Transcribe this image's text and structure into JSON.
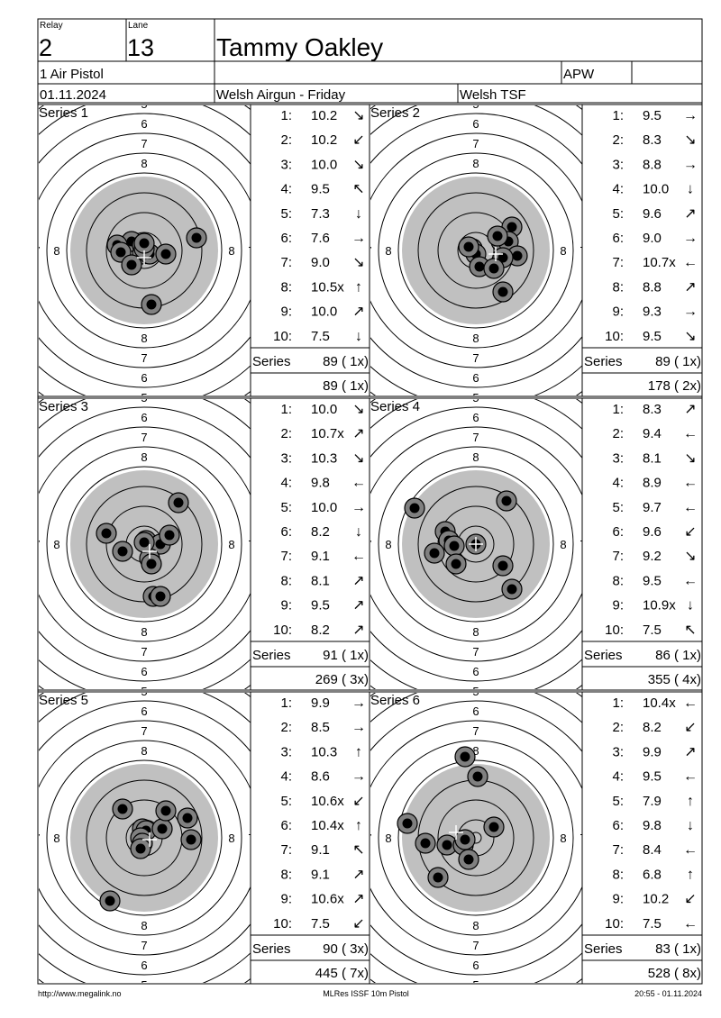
{
  "header": {
    "relay_label": "Relay",
    "relay_value": "2",
    "lane_label": "Lane",
    "lane_value": "13",
    "shooter_name": "Tammy Oakley",
    "discipline": "1 Air Pistol",
    "class_code": "APW",
    "date": "01.11.2024",
    "competition": "Welsh Airgun - Friday",
    "organizer": "Welsh TSF"
  },
  "series": [
    {
      "label": "Series 1",
      "shots": [
        {
          "num": "1:",
          "score": "10.2",
          "dir": "↘"
        },
        {
          "num": "2:",
          "score": "10.2",
          "dir": "↙"
        },
        {
          "num": "3:",
          "score": "10.0",
          "dir": "↘"
        },
        {
          "num": "4:",
          "score": "9.5",
          "dir": "↖"
        },
        {
          "num": "5:",
          "score": "7.3",
          "dir": "↓"
        },
        {
          "num": "6:",
          "score": "7.6",
          "dir": "→"
        },
        {
          "num": "7:",
          "score": "9.0",
          "dir": "↘"
        },
        {
          "num": "8:",
          "score": "10.5x",
          "dir": "↑"
        },
        {
          "num": "9:",
          "score": "10.0",
          "dir": "↗"
        },
        {
          "num": "10:",
          "score": "7.5",
          "dir": "↓"
        }
      ],
      "series_label": "Series",
      "series_total": "89 ( 1x)",
      "cumulative": "89 ( 1x)",
      "hits": [
        [
          -14,
          -10
        ],
        [
          -2,
          -6
        ],
        [
          -2,
          4
        ],
        [
          -30,
          -6
        ],
        [
          -26,
          2
        ],
        [
          -14,
          16
        ],
        [
          6,
          4
        ],
        [
          0,
          -2
        ],
        [
          8,
          60
        ],
        [
          58,
          -14
        ],
        [
          24,
          4
        ],
        [
          0,
          -8
        ]
      ],
      "center": [
        0,
        8
      ]
    },
    {
      "label": "Series 2",
      "shots": [
        {
          "num": "1:",
          "score": "9.5",
          "dir": "→"
        },
        {
          "num": "2:",
          "score": "8.3",
          "dir": "↘"
        },
        {
          "num": "3:",
          "score": "8.8",
          "dir": "→"
        },
        {
          "num": "4:",
          "score": "10.0",
          "dir": "↓"
        },
        {
          "num": "5:",
          "score": "9.6",
          "dir": "↗"
        },
        {
          "num": "6:",
          "score": "9.0",
          "dir": "→"
        },
        {
          "num": "7:",
          "score": "10.7x",
          "dir": "←"
        },
        {
          "num": "8:",
          "score": "8.8",
          "dir": "↗"
        },
        {
          "num": "9:",
          "score": "9.3",
          "dir": "→"
        },
        {
          "num": "10:",
          "score": "9.5",
          "dir": "↘"
        }
      ],
      "series_label": "Series",
      "series_total": "89 ( 1x)",
      "cumulative": "178 ( 2x)",
      "hits": [
        [
          -4,
          -2
        ],
        [
          0,
          4
        ],
        [
          28,
          -10
        ],
        [
          40,
          -26
        ],
        [
          36,
          -10
        ],
        [
          24,
          -16
        ],
        [
          46,
          6
        ],
        [
          30,
          8
        ],
        [
          4,
          18
        ],
        [
          20,
          20
        ],
        [
          30,
          46
        ],
        [
          -8,
          -4
        ]
      ],
      "center": [
        22,
        4
      ]
    },
    {
      "label": "Series 3",
      "shots": [
        {
          "num": "1:",
          "score": "10.0",
          "dir": "↘"
        },
        {
          "num": "2:",
          "score": "10.7x",
          "dir": "↗"
        },
        {
          "num": "3:",
          "score": "10.3",
          "dir": "↘"
        },
        {
          "num": "4:",
          "score": "9.8",
          "dir": "←"
        },
        {
          "num": "5:",
          "score": "10.0",
          "dir": "→"
        },
        {
          "num": "6:",
          "score": "8.2",
          "dir": "↓"
        },
        {
          "num": "7:",
          "score": "9.1",
          "dir": "←"
        },
        {
          "num": "8:",
          "score": "8.1",
          "dir": "↗"
        },
        {
          "num": "9:",
          "score": "9.5",
          "dir": "↗"
        },
        {
          "num": "10:",
          "score": "8.2",
          "dir": "↗"
        }
      ],
      "series_label": "Series",
      "series_total": "91 ( 1x)",
      "cumulative": "269 ( 3x)",
      "hits": [
        [
          2,
          -4
        ],
        [
          -24,
          8
        ],
        [
          -42,
          -12
        ],
        [
          18,
          0
        ],
        [
          6,
          16
        ],
        [
          8,
          22
        ],
        [
          10,
          58
        ],
        [
          18,
          58
        ],
        [
          38,
          -46
        ],
        [
          28,
          -10
        ],
        [
          0,
          -2
        ]
      ],
      "center": [
        6,
        8
      ]
    },
    {
      "label": "Series 4",
      "shots": [
        {
          "num": "1:",
          "score": "8.3",
          "dir": "↗"
        },
        {
          "num": "2:",
          "score": "9.4",
          "dir": "←"
        },
        {
          "num": "3:",
          "score": "8.1",
          "dir": "↘"
        },
        {
          "num": "4:",
          "score": "8.9",
          "dir": "←"
        },
        {
          "num": "5:",
          "score": "9.7",
          "dir": "←"
        },
        {
          "num": "6:",
          "score": "9.6",
          "dir": "↙"
        },
        {
          "num": "7:",
          "score": "9.2",
          "dir": "↘"
        },
        {
          "num": "8:",
          "score": "9.5",
          "dir": "←"
        },
        {
          "num": "9:",
          "score": "10.9x",
          "dir": "↓"
        },
        {
          "num": "10:",
          "score": "7.5",
          "dir": "↖"
        }
      ],
      "series_label": "Series",
      "series_total": "86 ( 1x)",
      "cumulative": "355 ( 4x)",
      "hits": [
        [
          -68,
          -40
        ],
        [
          -34,
          -14
        ],
        [
          -30,
          -4
        ],
        [
          -24,
          2
        ],
        [
          -46,
          10
        ],
        [
          -22,
          22
        ],
        [
          0,
          0
        ],
        [
          34,
          -48
        ],
        [
          30,
          24
        ],
        [
          40,
          50
        ]
      ],
      "center": [
        0,
        0
      ]
    },
    {
      "label": "Series 5",
      "shots": [
        {
          "num": "1:",
          "score": "9.9",
          "dir": "→"
        },
        {
          "num": "2:",
          "score": "8.5",
          "dir": "→"
        },
        {
          "num": "3:",
          "score": "10.3",
          "dir": "↑"
        },
        {
          "num": "4:",
          "score": "8.6",
          "dir": "→"
        },
        {
          "num": "5:",
          "score": "10.6x",
          "dir": "↙"
        },
        {
          "num": "6:",
          "score": "10.4x",
          "dir": "↑"
        },
        {
          "num": "7:",
          "score": "9.1",
          "dir": "↖"
        },
        {
          "num": "8:",
          "score": "9.1",
          "dir": "↗"
        },
        {
          "num": "9:",
          "score": "10.6x",
          "dir": "↗"
        },
        {
          "num": "10:",
          "score": "7.5",
          "dir": "↙"
        }
      ],
      "series_label": "Series",
      "series_total": "90 ( 3x)",
      "cumulative": "445 ( 7x)",
      "hits": [
        [
          -24,
          -32
        ],
        [
          -2,
          -10
        ],
        [
          2,
          -8
        ],
        [
          -4,
          0
        ],
        [
          -2,
          6
        ],
        [
          -4,
          12
        ],
        [
          20,
          -10
        ],
        [
          24,
          -30
        ],
        [
          48,
          -22
        ],
        [
          52,
          2
        ],
        [
          -38,
          70
        ]
      ],
      "center": [
        6,
        2
      ]
    },
    {
      "label": "Series 6",
      "shots": [
        {
          "num": "1:",
          "score": "10.4x",
          "dir": "←"
        },
        {
          "num": "2:",
          "score": "8.2",
          "dir": "↙"
        },
        {
          "num": "3:",
          "score": "9.9",
          "dir": "↗"
        },
        {
          "num": "4:",
          "score": "9.5",
          "dir": "←"
        },
        {
          "num": "5:",
          "score": "7.9",
          "dir": "↑"
        },
        {
          "num": "6:",
          "score": "9.8",
          "dir": "↓"
        },
        {
          "num": "7:",
          "score": "8.4",
          "dir": "←"
        },
        {
          "num": "8:",
          "score": "6.8",
          "dir": "↑"
        },
        {
          "num": "9:",
          "score": "10.2",
          "dir": "↙"
        },
        {
          "num": "10:",
          "score": "7.5",
          "dir": "←"
        }
      ],
      "series_label": "Series",
      "series_total": "83 ( 1x)",
      "cumulative": "528 ( 8x)",
      "hits": [
        [
          -12,
          -90
        ],
        [
          2,
          -68
        ],
        [
          -76,
          -16
        ],
        [
          -56,
          6
        ],
        [
          -32,
          8
        ],
        [
          -14,
          8
        ],
        [
          -12,
          2
        ],
        [
          -8,
          24
        ],
        [
          20,
          -12
        ],
        [
          -42,
          44
        ]
      ],
      "center": [
        -22,
        -6
      ]
    }
  ],
  "footer": {
    "url": "http://www.megalink.no",
    "software": "MLRes ISSF 10m Pistol",
    "timestamp": "20:55 - 01.11.2024"
  }
}
